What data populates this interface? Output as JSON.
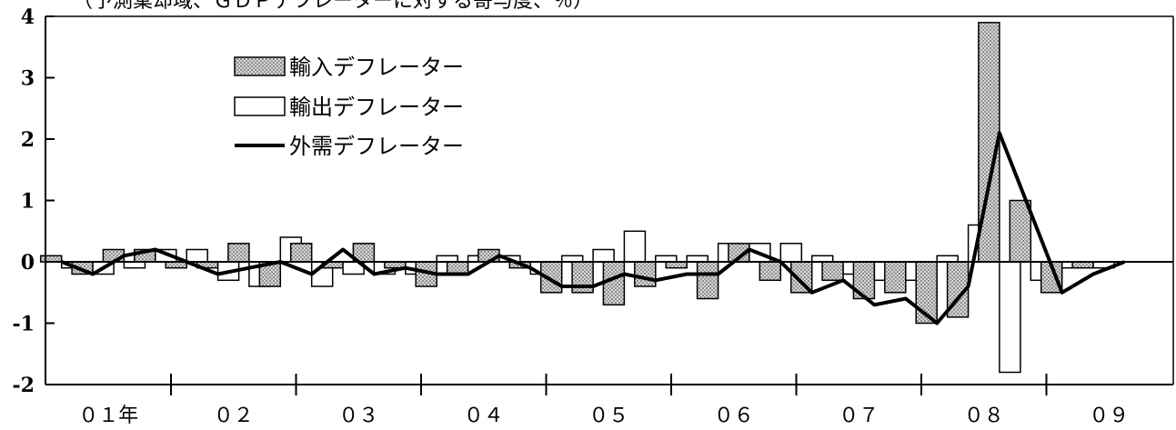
{
  "chart_data": {
    "type": "bar",
    "title": "（予測棄却域、ＧＤＰデフレーターに対する寄与度、％）",
    "ylim": [
      -2,
      4
    ],
    "yticks": [
      4,
      3,
      2,
      1,
      0,
      -1,
      -2
    ],
    "ytick_labels": [
      "4",
      "3",
      "2",
      "1",
      "0",
      "-1",
      "-2"
    ],
    "year_labels": [
      "０１年",
      "０２",
      "０３",
      "０４",
      "０５",
      "０６",
      "０７",
      "０８",
      "０９"
    ],
    "quarters_per_year": 4,
    "series": [
      {
        "name": "輸入デフレーター",
        "kind": "bar",
        "pattern": "dotted",
        "values": [
          0.1,
          -0.2,
          0.2,
          0.2,
          -0.1,
          -0.1,
          0.3,
          -0.4,
          0.3,
          -0.1,
          0.3,
          -0.1,
          -0.4,
          -0.2,
          0.2,
          -0.1,
          -0.5,
          -0.5,
          -0.7,
          -0.4,
          -0.1,
          -0.6,
          0.3,
          -0.3,
          -0.5,
          -0.3,
          -0.6,
          -0.5,
          -1.0,
          -0.9,
          3.9,
          1.0,
          -0.5,
          -0.1,
          0.0
        ]
      },
      {
        "name": "輸出デフレーター",
        "kind": "bar",
        "pattern": "hollow",
        "values": [
          -0.1,
          -0.2,
          -0.1,
          0.2,
          0.2,
          -0.3,
          -0.4,
          0.4,
          -0.4,
          -0.2,
          -0.2,
          -0.2,
          0.1,
          0.1,
          0.1,
          -0.2,
          0.1,
          0.2,
          0.5,
          0.1,
          0.1,
          0.3,
          0.3,
          0.3,
          0.1,
          -0.2,
          -0.3,
          -0.3,
          0.1,
          0.6,
          -1.8,
          -0.3,
          -0.1,
          -0.1,
          0.0
        ]
      },
      {
        "name": "外需デフレーター",
        "kind": "line",
        "values": [
          0.0,
          -0.2,
          0.1,
          0.2,
          0.0,
          -0.2,
          -0.1,
          0.0,
          -0.2,
          0.2,
          -0.2,
          -0.1,
          -0.2,
          -0.2,
          0.1,
          -0.1,
          -0.4,
          -0.4,
          -0.2,
          -0.3,
          -0.2,
          -0.2,
          0.2,
          0.0,
          -0.5,
          -0.3,
          -0.7,
          -0.6,
          -1.0,
          -0.4,
          2.1,
          0.8,
          -0.5,
          -0.2,
          0.0
        ]
      }
    ],
    "legend": {
      "position": "top-left",
      "entries": [
        "輸入デフレーター",
        "輸出デフレーター",
        "外需デフレーター"
      ]
    },
    "grid": false
  },
  "colors": {
    "background": "#ffffff",
    "bar_fill_import": "#b8b8b8",
    "bar_fill_export": "#ffffff",
    "line": "#000000",
    "axis": "#000000"
  }
}
